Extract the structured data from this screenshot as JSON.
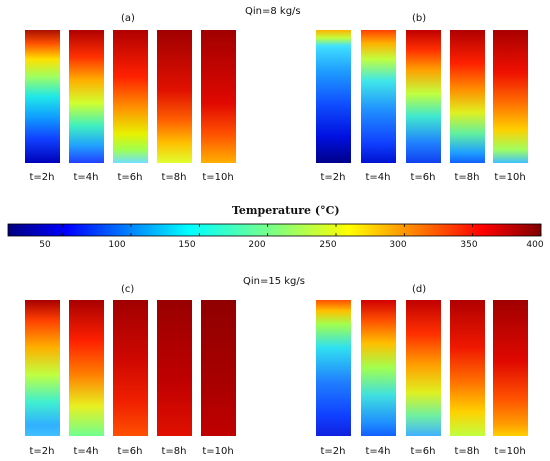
{
  "top": {
    "flow_label": "Qin=8 kg/s"
  },
  "bottom": {
    "flow_label": "Qin=15 kg/s"
  },
  "panels": [
    {
      "label": "(a)",
      "times": [
        "t=2h",
        "t=4h",
        "t=6h",
        "t=8h",
        "t=10h"
      ]
    },
    {
      "label": "(b)",
      "times": [
        "t=2h",
        "t=4h",
        "t=6h",
        "t=8h",
        "t=10h"
      ]
    },
    {
      "label": "(c)",
      "times": [
        "t=2h",
        "t=4h",
        "t=6h",
        "t=8h",
        "t=10h"
      ]
    },
    {
      "label": "(d)",
      "times": [
        "t=2h",
        "t=4h",
        "t=6h",
        "t=8h",
        "t=10h"
      ]
    }
  ],
  "colorbar": {
    "title": "Temperature (°C)",
    "min": 10,
    "max": 400,
    "ticks": [
      "50",
      "100",
      "150",
      "200",
      "250",
      "300",
      "350",
      "400"
    ],
    "tick_values": [
      50,
      100,
      150,
      200,
      250,
      300,
      350,
      400
    ],
    "colormap": "jet"
  },
  "colors": {
    "jet_dark_blue": "#00007f",
    "jet_dark_red": "#7f0000",
    "frame": "#000000"
  }
}
